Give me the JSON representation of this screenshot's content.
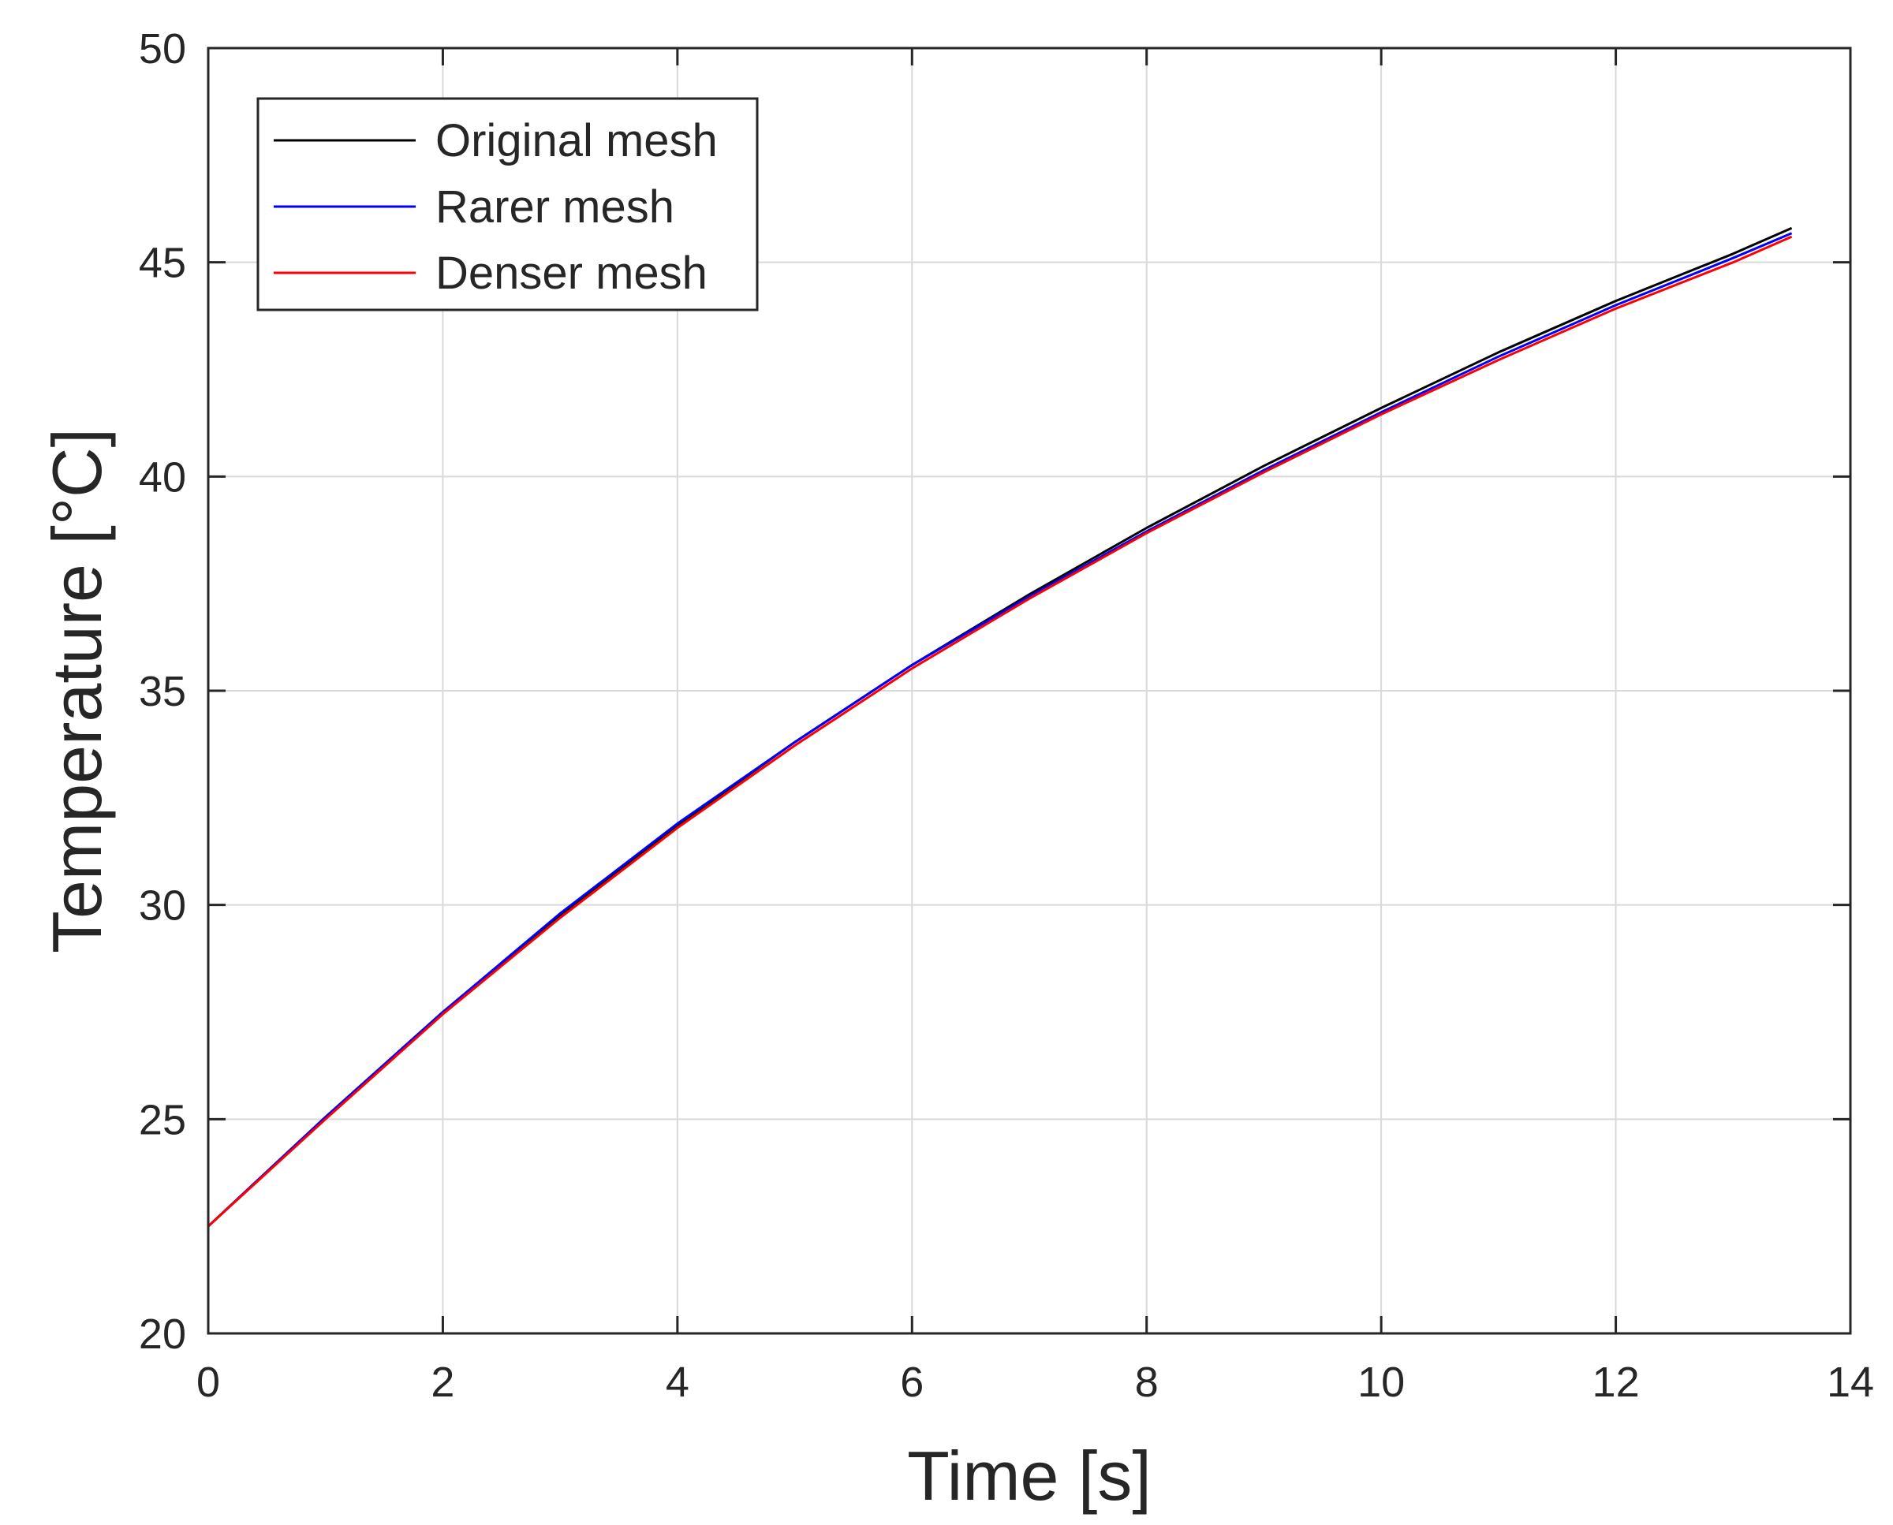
{
  "chart_data": {
    "type": "line",
    "title": "",
    "xlabel": "Time [s]",
    "ylabel": "Temperature [°C]",
    "xlim": [
      0,
      14
    ],
    "ylim": [
      20,
      50
    ],
    "xticks": [
      "0",
      "2",
      "4",
      "6",
      "8",
      "10",
      "12",
      "14"
    ],
    "yticks": [
      "20",
      "25",
      "30",
      "35",
      "40",
      "45",
      "50"
    ],
    "grid": true,
    "legend_position": "top-left",
    "series": [
      {
        "name": "Original mesh",
        "color": "#000000",
        "x": [
          0,
          1,
          2,
          3,
          4,
          5,
          6,
          7,
          8,
          9,
          10,
          11,
          12,
          13,
          13.5
        ],
        "y": [
          22.5,
          25.05,
          27.5,
          29.75,
          31.85,
          33.8,
          35.6,
          37.25,
          38.8,
          40.25,
          41.6,
          42.9,
          44.1,
          45.2,
          45.8
        ]
      },
      {
        "name": "Rarer mesh",
        "color": "#0000ff",
        "x": [
          0,
          1,
          2,
          3,
          4,
          5,
          6,
          7,
          8,
          9,
          10,
          11,
          12,
          13,
          13.5
        ],
        "y": [
          22.5,
          25.05,
          27.5,
          29.8,
          31.9,
          33.8,
          35.6,
          37.2,
          38.72,
          40.15,
          41.5,
          42.8,
          44.0,
          45.1,
          45.68
        ]
      },
      {
        "name": "Denser mesh",
        "color": "#ff0000",
        "x": [
          0,
          1,
          2,
          3,
          4,
          5,
          6,
          7,
          8,
          9,
          10,
          11,
          12,
          13,
          13.5
        ],
        "y": [
          22.5,
          25.0,
          27.45,
          29.7,
          31.8,
          33.72,
          35.52,
          37.15,
          38.68,
          40.1,
          41.45,
          42.72,
          43.92,
          45.0,
          45.6
        ]
      }
    ]
  }
}
